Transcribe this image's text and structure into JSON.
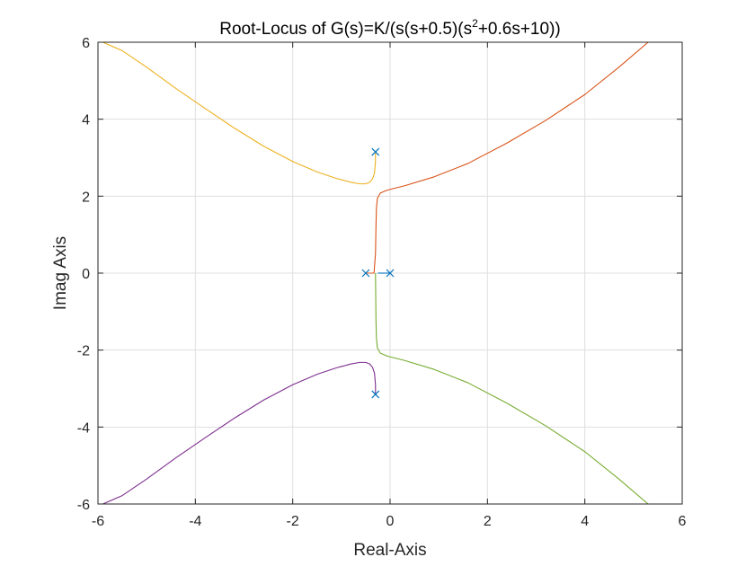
{
  "chart_data": {
    "type": "line",
    "title": {
      "prefix": "Root-Locus of G(s)=K/(s(s+0.5)(s",
      "superscript": "2",
      "suffix": "+0.6s+10))"
    },
    "xlabel": "Real-Axis",
    "ylabel": "Imag Axis",
    "xlim": [
      -6,
      6
    ],
    "ylim": [
      -6,
      6
    ],
    "xticks": [
      -6,
      -4,
      -2,
      0,
      2,
      4,
      6
    ],
    "yticks": [
      -6,
      -4,
      -2,
      0,
      2,
      4,
      6
    ],
    "xtick_labels": [
      "-6",
      "-4",
      "-2",
      "0",
      "2",
      "4",
      "6"
    ],
    "ytick_labels": [
      "-6",
      "-4",
      "-2",
      "0",
      "2",
      "4",
      "6"
    ],
    "grid": true,
    "poles": [
      {
        "x": 0,
        "y": 0
      },
      {
        "x": -0.5,
        "y": 0
      },
      {
        "x": -0.3,
        "y": 3.15
      },
      {
        "x": -0.3,
        "y": -3.15
      }
    ],
    "pole_marker": "x",
    "pole_color": "#0072BD",
    "series": [
      {
        "color": "#EDB120",
        "x": [
          -0.3,
          -0.3,
          -0.32,
          -0.36,
          -0.42,
          -0.5,
          -0.62,
          -0.8,
          -1.1,
          -1.5,
          -2.0,
          -2.6,
          -3.2,
          -3.8,
          -4.4,
          -5.0,
          -5.5,
          -5.9
        ],
        "y": [
          3.15,
          2.9,
          2.6,
          2.45,
          2.36,
          2.32,
          2.32,
          2.36,
          2.46,
          2.63,
          2.9,
          3.3,
          3.77,
          4.28,
          4.8,
          5.35,
          5.78,
          6.0
        ]
      },
      {
        "color": "#D95319",
        "x": [
          -0.5,
          -0.42,
          -0.33,
          -0.3,
          -0.29,
          -0.28,
          -0.26,
          -0.2,
          -0.05,
          0.3,
          0.9,
          1.6,
          2.4,
          3.2,
          4.0,
          4.7,
          5.3
        ],
        "y": [
          0.0,
          0.0,
          0.0,
          0.5,
          1.2,
          1.7,
          1.95,
          2.08,
          2.16,
          2.27,
          2.5,
          2.85,
          3.38,
          3.97,
          4.64,
          5.35,
          6.0
        ]
      },
      {
        "color": "#77AC30",
        "x": [
          -0.3,
          -0.29,
          -0.28,
          -0.26,
          -0.2,
          -0.05,
          0.3,
          0.9,
          1.6,
          2.4,
          3.2,
          4.0,
          4.7,
          5.3
        ],
        "y": [
          0.0,
          -1.2,
          -1.7,
          -1.95,
          -2.08,
          -2.16,
          -2.27,
          -2.5,
          -2.85,
          -3.38,
          -3.97,
          -4.64,
          -5.35,
          -6.0
        ]
      },
      {
        "color": "#7E2F8E",
        "x": [
          -0.3,
          -0.3,
          -0.32,
          -0.36,
          -0.42,
          -0.5,
          -0.62,
          -0.8,
          -1.1,
          -1.5,
          -2.0,
          -2.6,
          -3.2,
          -3.8,
          -4.4,
          -5.0,
          -5.5,
          -5.9
        ],
        "y": [
          -3.15,
          -2.9,
          -2.6,
          -2.45,
          -2.36,
          -2.32,
          -2.32,
          -2.36,
          -2.46,
          -2.63,
          -2.9,
          -3.3,
          -3.77,
          -4.28,
          -4.8,
          -5.35,
          -5.78,
          -6.0
        ]
      },
      {
        "color": "#0072BD",
        "x": [
          0,
          -0.25
        ],
        "y": [
          0,
          0
        ]
      }
    ]
  }
}
